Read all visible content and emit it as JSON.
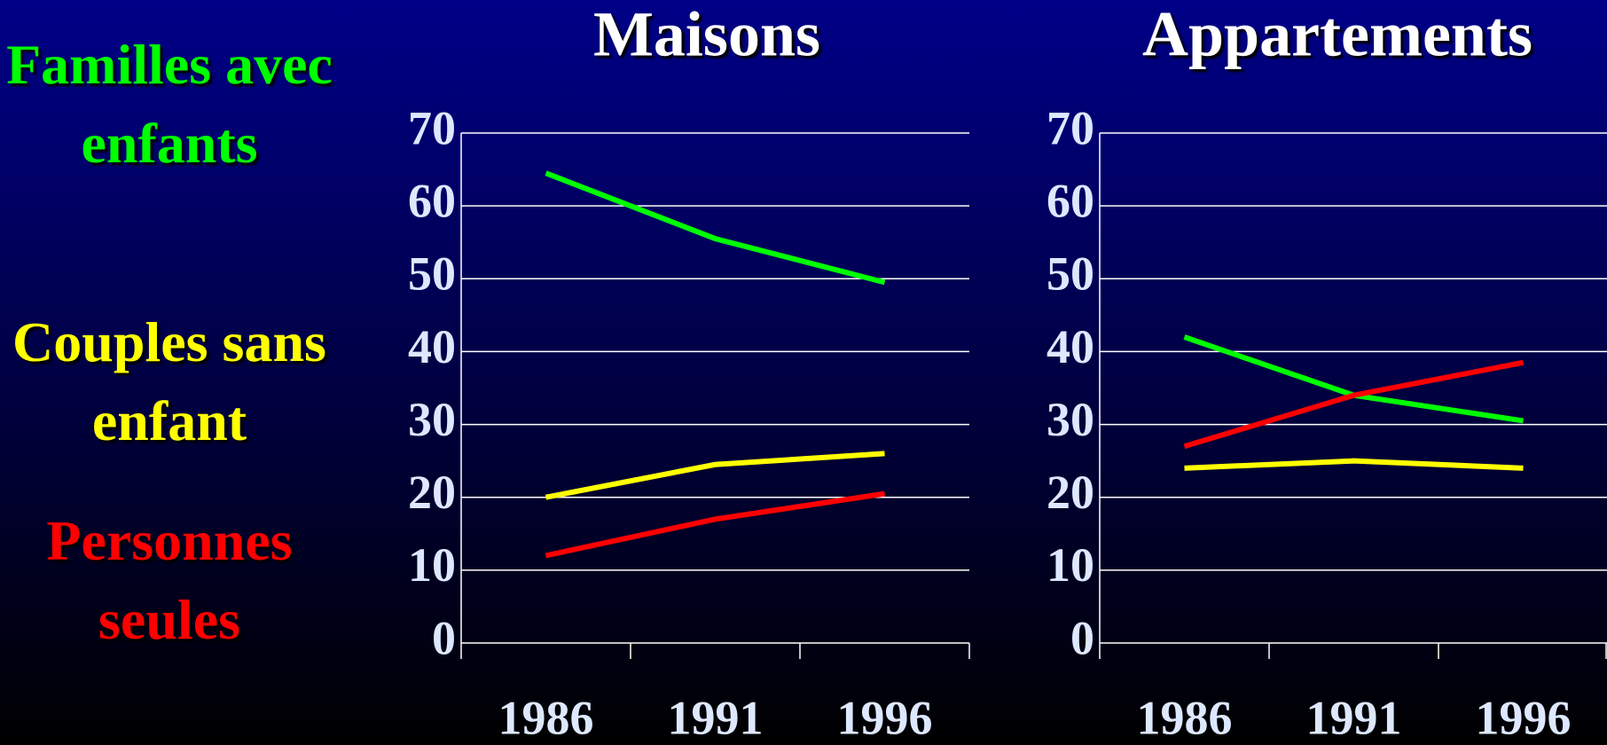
{
  "chart_data": [
    {
      "type": "line",
      "title": "Maisons",
      "categories": [
        "1986",
        "1991",
        "1996"
      ],
      "series": [
        {
          "name": "Familles avec enfants",
          "color": "#00ff00",
          "values": [
            64.5,
            55.5,
            49.5
          ]
        },
        {
          "name": "Couples sans enfant",
          "color": "#ffff00",
          "values": [
            20,
            24.5,
            26
          ]
        },
        {
          "name": "Personnes seules",
          "color": "#ff0000",
          "values": [
            12,
            17,
            20.5
          ]
        }
      ],
      "ylim": [
        0,
        70
      ],
      "yticks": [
        0,
        10,
        20,
        30,
        40,
        50,
        60,
        70
      ],
      "grid": true
    },
    {
      "type": "line",
      "title": "Appartements",
      "categories": [
        "1986",
        "1991",
        "1996"
      ],
      "series": [
        {
          "color": "#00ff00",
          "values": [
            42,
            34,
            30.5
          ]
        },
        {
          "color": "#ffff00",
          "values": [
            24,
            25,
            24
          ]
        },
        {
          "color": "#ff0000",
          "values": [
            27,
            34,
            38.5
          ]
        }
      ],
      "ylim": [
        0,
        70
      ],
      "yticks": [
        0,
        10,
        20,
        30,
        40,
        50,
        60,
        70
      ],
      "grid": true
    }
  ]
}
